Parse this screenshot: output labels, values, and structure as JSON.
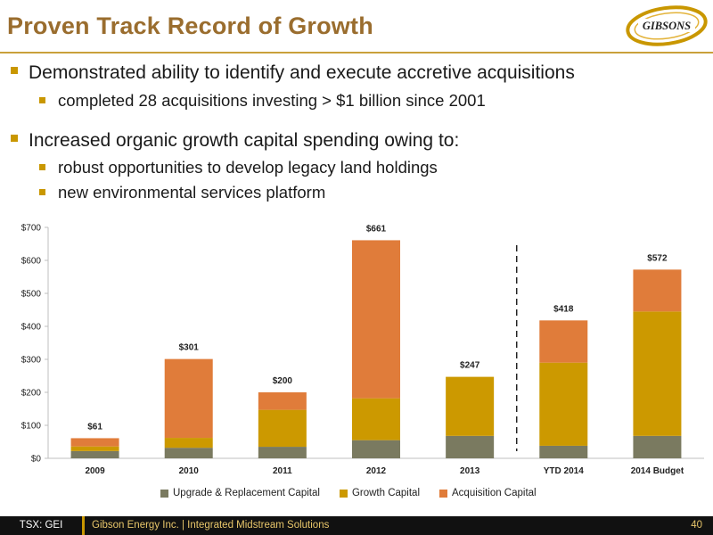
{
  "page": {
    "title": "Proven Track Record of Growth"
  },
  "logo": {
    "text": "GIBSONS",
    "icon": "gibsons-swoosh-logo"
  },
  "bullets": [
    {
      "text": "Demonstrated ability to identify and execute accretive acquisitions",
      "sub": [
        "completed 28 acquisitions investing > $1 billion since 2001"
      ]
    },
    {
      "text": "Increased organic growth capital spending owing to:",
      "sub": [
        "robust opportunities to develop legacy land holdings",
        "new environmental services platform"
      ]
    }
  ],
  "colors": {
    "title": "#9a6d2e",
    "accent": "#c99700",
    "upgrade": "#7a7a60",
    "growth": "#cc9900",
    "acquisition": "#e07c3a"
  },
  "chart_data": {
    "type": "bar",
    "stacked": true,
    "categories": [
      "2009",
      "2010",
      "2011",
      "2012",
      "2013",
      "YTD 2014",
      "2014 Budget"
    ],
    "series": [
      {
        "name": "Upgrade & Replacement Capital",
        "values": [
          22,
          32,
          35,
          55,
          68,
          38,
          68
        ]
      },
      {
        "name": "Growth Capital",
        "values": [
          14,
          30,
          112,
          127,
          179,
          252,
          377
        ]
      },
      {
        "name": "Acquisition Capital",
        "values": [
          25,
          239,
          53,
          479,
          0,
          128,
          127
        ]
      }
    ],
    "totals": [
      "$61",
      "$301",
      "$200",
      "$661",
      "$247",
      "$418",
      "$572"
    ],
    "ylim": [
      0,
      700
    ],
    "yticks": [
      "$0",
      "$100",
      "$200",
      "$300",
      "$400",
      "$500",
      "$600",
      "$700"
    ],
    "legend_position": "bottom",
    "divider_after_category": "2013"
  },
  "footer": {
    "ticker": "TSX: GEI",
    "text": "Gibson Energy Inc.   |   Integrated Midstream Solutions",
    "page": "40"
  }
}
